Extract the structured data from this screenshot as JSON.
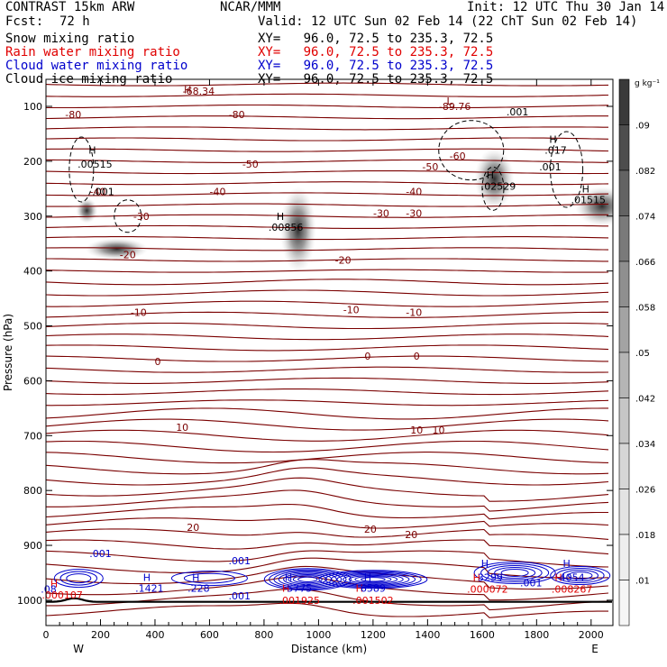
{
  "header": {
    "model": "CONTRAST 15km ARW",
    "org": "NCAR/MMM",
    "init": "Init: 12 UTC Thu 30 Jan 14",
    "fcst_label": "Fcst:",
    "fcst_value": "72 h",
    "valid": "Valid: 12 UTC Sun 02 Feb 14 (22 ChT Sun 02 Feb 14)",
    "fields": [
      {
        "name": "Snow mixing ratio",
        "xy": "XY=   96.0, 72.5 to 235.3, 72.5",
        "color": "#000000"
      },
      {
        "name": "Rain water mixing ratio",
        "xy": "XY=   96.0, 72.5 to 235.3, 72.5",
        "color": "#e00000"
      },
      {
        "name": "Cloud water mixing ratio",
        "xy": "XY=   96.0, 72.5 to 235.3, 72.5",
        "color": "#0000cc"
      },
      {
        "name": "Cloud ice mixing ratio",
        "xy": "XY=   96.0, 72.5 to 235.3, 72.5",
        "color": "#000000"
      }
    ]
  },
  "chart_data": {
    "type": "contour cross-section",
    "xlabel": "Distance (km)",
    "ylabel": "Pressure (hPa)",
    "xlim": [
      0,
      2080
    ],
    "ylim": [
      1050,
      55
    ],
    "xticks": [
      0,
      200,
      400,
      600,
      800,
      1000,
      1200,
      1400,
      1600,
      1800,
      2000
    ],
    "yticks": [
      100,
      200,
      300,
      400,
      500,
      600,
      700,
      800,
      900,
      1000
    ],
    "endpoints": {
      "left": "W",
      "right": "E"
    },
    "colorbar": {
      "units": "g kg⁻¹",
      "levels": [
        0.01,
        0.018,
        0.026,
        0.034,
        0.042,
        0.05,
        0.058,
        0.066,
        0.074,
        0.082,
        0.09
      ],
      "labels": [
        ".01",
        ".018",
        ".026",
        ".034",
        ".042",
        ".05",
        ".058",
        ".066",
        ".074",
        ".082",
        ".09"
      ],
      "colors": [
        "#f6f6f6",
        "#eeeeee",
        "#e3e3e3",
        "#d6d6d6",
        "#c6c6c6",
        "#b5b5b5",
        "#a3a3a3",
        "#8f8f8f",
        "#7a7a7a",
        "#636363",
        "#4d4d4d",
        "#3a3a3a"
      ]
    },
    "temperature_labels": [
      {
        "text": "-68.34",
        "x": 560,
        "p": 72
      },
      {
        "text": "-89.76",
        "x": 1500,
        "p": 100
      },
      {
        "text": "-80",
        "x": 100,
        "p": 115
      },
      {
        "text": "-80",
        "x": 700,
        "p": 115
      },
      {
        "text": "-60",
        "x": 1510,
        "p": 190
      },
      {
        "text": "-50",
        "x": 750,
        "p": 205
      },
      {
        "text": "-50",
        "x": 1410,
        "p": 210
      },
      {
        "text": "-40",
        "x": 190,
        "p": 255
      },
      {
        "text": "-40",
        "x": 630,
        "p": 255
      },
      {
        "text": "-40",
        "x": 1350,
        "p": 255
      },
      {
        "text": "-30",
        "x": 350,
        "p": 300
      },
      {
        "text": "-30",
        "x": 1230,
        "p": 295
      },
      {
        "text": "-30",
        "x": 1350,
        "p": 295
      },
      {
        "text": "-20",
        "x": 300,
        "p": 370
      },
      {
        "text": "-20",
        "x": 1090,
        "p": 380
      },
      {
        "text": "-10",
        "x": 340,
        "p": 475
      },
      {
        "text": "-10",
        "x": 1120,
        "p": 470
      },
      {
        "text": "-10",
        "x": 1350,
        "p": 475
      },
      {
        "text": "0",
        "x": 410,
        "p": 565
      },
      {
        "text": "0",
        "x": 1180,
        "p": 555
      },
      {
        "text": "0",
        "x": 1360,
        "p": 555
      },
      {
        "text": "10",
        "x": 500,
        "p": 685
      },
      {
        "text": "10",
        "x": 1360,
        "p": 690
      },
      {
        "text": "10",
        "x": 1440,
        "p": 690
      },
      {
        "text": "20",
        "x": 540,
        "p": 867
      },
      {
        "text": "20",
        "x": 1190,
        "p": 870
      },
      {
        "text": "20",
        "x": 1340,
        "p": 880
      }
    ],
    "maxima_labels": [
      {
        "text": "H",
        "x": 520,
        "p": 70,
        "color": "#7a0000"
      },
      {
        "text": "L",
        "x": 1480,
        "p": 90,
        "color": "#7a0000"
      },
      {
        "text": ".001",
        "x": 1730,
        "p": 110,
        "color": "#000000"
      },
      {
        "text": "H",
        "x": 170,
        "p": 180,
        "color": "#000000"
      },
      {
        "text": ".00515",
        "x": 180,
        "p": 205,
        "color": "#000000"
      },
      {
        "text": ".001",
        "x": 210,
        "p": 255,
        "color": "#000000"
      },
      {
        "text": "H",
        "x": 1860,
        "p": 160,
        "color": "#000000"
      },
      {
        "text": ".017",
        "x": 1870,
        "p": 180,
        "color": "#000000"
      },
      {
        "text": ".001",
        "x": 1850,
        "p": 210,
        "color": "#000000"
      },
      {
        "text": "H",
        "x": 1630,
        "p": 225,
        "color": "#000000"
      },
      {
        "text": ".02529",
        "x": 1660,
        "p": 245,
        "color": "#000000"
      },
      {
        "text": "H",
        "x": 1980,
        "p": 250,
        "color": "#000000"
      },
      {
        "text": ".01515",
        "x": 1990,
        "p": 270,
        "color": "#000000"
      },
      {
        "text": "H",
        "x": 860,
        "p": 300,
        "color": "#000000"
      },
      {
        "text": ".00856",
        "x": 880,
        "p": 320,
        "color": "#000000"
      },
      {
        "text": "H",
        "x": 30,
        "p": 970,
        "color": "#e00000"
      },
      {
        "text": ".08",
        "x": 10,
        "p": 980,
        "color": "#0000cc"
      },
      {
        "text": ".000107",
        "x": 60,
        "p": 990,
        "color": "#e00000"
      },
      {
        "text": ".001",
        "x": 200,
        "p": 915,
        "color": "#0000cc"
      },
      {
        "text": "H",
        "x": 370,
        "p": 958,
        "color": "#0000cc"
      },
      {
        "text": ".1421",
        "x": 380,
        "p": 978,
        "color": "#0000cc"
      },
      {
        "text": "H",
        "x": 550,
        "p": 958,
        "color": "#0000cc"
      },
      {
        "text": ".228",
        "x": 560,
        "p": 978,
        "color": "#0000cc"
      },
      {
        "text": ".001",
        "x": 710,
        "p": 928,
        "color": "#0000cc"
      },
      {
        "text": ".001",
        "x": 710,
        "p": 992,
        "color": "#0000cc"
      },
      {
        "text": "H",
        "x": 890,
        "p": 958,
        "color": "#0000cc"
      },
      {
        "text": "H",
        "x": 880,
        "p": 978,
        "color": "#e00000"
      },
      {
        "text": "5775",
        "x": 930,
        "p": 978,
        "color": "#0000cc"
      },
      {
        "text": ".001925",
        "x": 930,
        "p": 1000,
        "color": "#e00000"
      },
      {
        "text": "H",
        "x": 1180,
        "p": 958,
        "color": "#0000cc"
      },
      {
        "text": "H",
        "x": 1150,
        "p": 978,
        "color": "#e00000"
      },
      {
        "text": "6589",
        "x": 1200,
        "p": 978,
        "color": "#0000cc"
      },
      {
        "text": ".001502",
        "x": 1200,
        "p": 1000,
        "color": "#e00000"
      },
      {
        "text": "H",
        "x": 1610,
        "p": 933,
        "color": "#0000cc"
      },
      {
        "text": "H",
        "x": 1580,
        "p": 958,
        "color": "#e00000"
      },
      {
        "text": "3299",
        "x": 1630,
        "p": 958,
        "color": "#0000cc"
      },
      {
        "text": ".000072",
        "x": 1620,
        "p": 980,
        "color": "#e00000"
      },
      {
        "text": ".001",
        "x": 1780,
        "p": 968,
        "color": "#0000cc"
      },
      {
        "text": "H",
        "x": 1910,
        "p": 933,
        "color": "#0000cc"
      },
      {
        "text": "H",
        "x": 1880,
        "p": 958,
        "color": "#e00000"
      },
      {
        "text": "4054",
        "x": 1930,
        "p": 958,
        "color": "#0000cc"
      },
      {
        "text": ".008267",
        "x": 1930,
        "p": 980,
        "color": "#e00000"
      }
    ]
  }
}
